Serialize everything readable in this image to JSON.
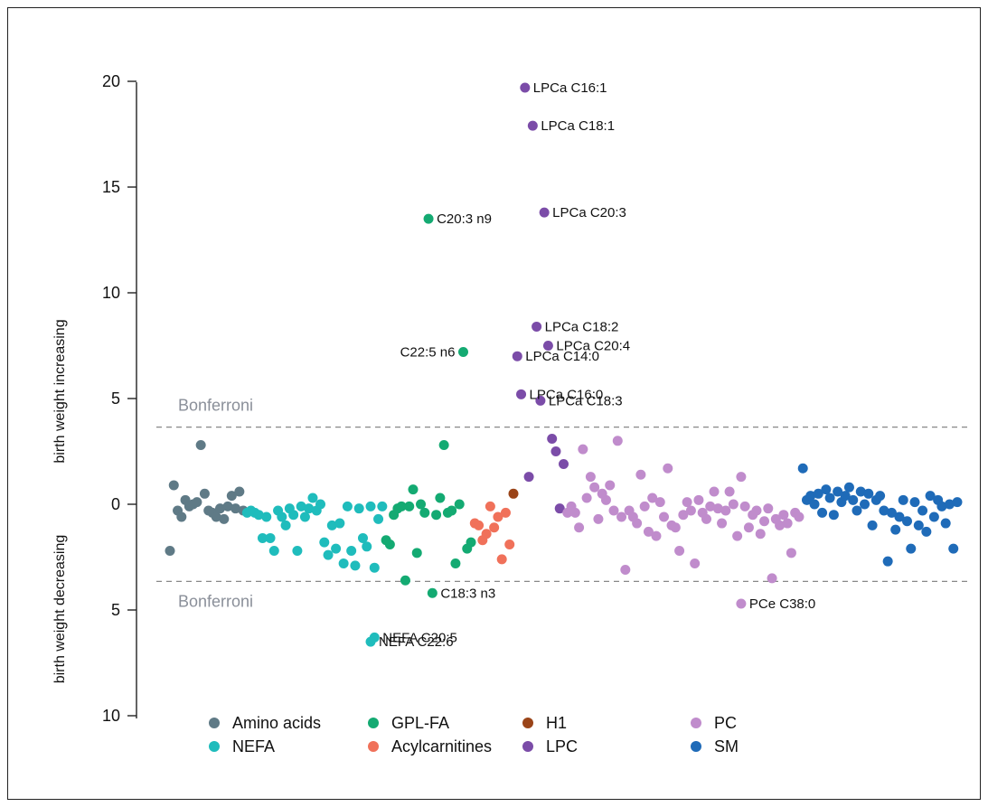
{
  "chart_data": {
    "type": "scatter",
    "yaxis": {
      "ticks_up": [
        "20",
        "15",
        "10",
        "5"
      ],
      "tick_zero": "0",
      "ticks_down": [
        "5",
        "10"
      ],
      "label_up": "birth weight increasing",
      "label_down": "birth weight decreasing",
      "range": [
        -10,
        20
      ]
    },
    "threshold": {
      "label": "Bonferroni",
      "value": 3.65
    },
    "colors": {
      "Amino acids": "#5f7a86",
      "NEFA": "#1fbcbc",
      "GPL-FA": "#14aa72",
      "Acylcarnitines": "#f0715a",
      "H1": "#9a4418",
      "LPC": "#7b4ca8",
      "PC": "#c08ccc",
      "SM": "#1f6bb8"
    },
    "legend": [
      {
        "name": "Amino acids"
      },
      {
        "name": "NEFA"
      },
      {
        "name": "GPL-FA"
      },
      {
        "name": "Acylcarnitines"
      },
      {
        "name": "H1"
      },
      {
        "name": "LPC"
      },
      {
        "name": "PC"
      },
      {
        "name": "SM"
      }
    ],
    "series": [
      {
        "name": "Amino acids",
        "points": [
          [
            1,
            -2.2
          ],
          [
            2,
            0.9
          ],
          [
            3,
            -0.3
          ],
          [
            4,
            -0.6
          ],
          [
            5,
            0.2
          ],
          [
            6,
            -0.1
          ],
          [
            7,
            0.0
          ],
          [
            8,
            0.1
          ],
          [
            9,
            2.8
          ],
          [
            10,
            0.5
          ],
          [
            11,
            -0.3
          ],
          [
            12,
            -0.4
          ],
          [
            13,
            -0.6
          ],
          [
            14,
            -0.2
          ],
          [
            15,
            -0.7
          ],
          [
            16,
            -0.1
          ],
          [
            17,
            0.4
          ],
          [
            18,
            -0.2
          ],
          [
            19,
            0.6
          ],
          [
            20,
            -0.3
          ]
        ]
      },
      {
        "name": "NEFA",
        "points": [
          [
            21,
            -0.4
          ],
          [
            22,
            -0.3
          ],
          [
            23,
            -0.4
          ],
          [
            24,
            -0.5
          ],
          [
            25,
            -1.6
          ],
          [
            26,
            -0.6
          ],
          [
            27,
            -1.6
          ],
          [
            28,
            -2.2
          ],
          [
            29,
            -0.3
          ],
          [
            30,
            -0.6
          ],
          [
            31,
            -1.0
          ],
          [
            32,
            -0.2
          ],
          [
            33,
            -0.5
          ],
          [
            34,
            -2.2
          ],
          [
            35,
            -0.1
          ],
          [
            36,
            -0.6
          ],
          [
            37,
            -0.2
          ],
          [
            38,
            0.3
          ],
          [
            39,
            -0.3
          ],
          [
            40,
            0.0
          ],
          [
            41,
            -1.8
          ],
          [
            42,
            -2.4
          ],
          [
            43,
            -1.0
          ],
          [
            44,
            -2.1
          ],
          [
            45,
            -0.9
          ],
          [
            46,
            -2.8
          ],
          [
            47,
            -0.1
          ],
          [
            48,
            -2.2
          ],
          [
            49,
            -2.9
          ],
          [
            50,
            -0.2
          ],
          [
            51,
            -1.6
          ],
          [
            52,
            -2.0
          ],
          [
            53,
            -0.1
          ],
          [
            54,
            -3.0
          ],
          [
            55,
            -0.7
          ],
          [
            56,
            -0.1
          ]
        ]
      },
      {
        "name": "GPL-FA",
        "points": [
          [
            57,
            -1.7
          ],
          [
            58,
            -1.9
          ],
          [
            59,
            -0.5
          ],
          [
            60,
            -0.2
          ],
          [
            61,
            -0.1
          ],
          [
            62,
            -3.6
          ],
          [
            63,
            -0.1
          ],
          [
            64,
            0.7
          ],
          [
            65,
            -2.3
          ],
          [
            66,
            0.0
          ],
          [
            67,
            -0.4
          ],
          [
            68,
            13.5
          ],
          [
            69,
            -4.2
          ],
          [
            70,
            -0.5
          ],
          [
            71,
            0.3
          ],
          [
            72,
            2.8
          ],
          [
            73,
            -0.4
          ],
          [
            74,
            -0.3
          ],
          [
            75,
            -2.8
          ],
          [
            76,
            0.0
          ],
          [
            77,
            7.2
          ],
          [
            78,
            -2.1
          ],
          [
            79,
            -1.8
          ]
        ]
      },
      {
        "name": "Acylcarnitines",
        "points": [
          [
            80,
            -0.9
          ],
          [
            81,
            -1.0
          ],
          [
            82,
            -1.7
          ],
          [
            83,
            -1.4
          ],
          [
            84,
            -0.1
          ],
          [
            85,
            -1.1
          ],
          [
            86,
            -0.6
          ],
          [
            87,
            -2.6
          ],
          [
            88,
            -0.4
          ],
          [
            89,
            -1.9
          ]
        ]
      },
      {
        "name": "H1",
        "points": [
          [
            90,
            0.5
          ]
        ]
      },
      {
        "name": "LPC",
        "points": [
          [
            91,
            7.0
          ],
          [
            92,
            5.2
          ],
          [
            93,
            19.7
          ],
          [
            94,
            1.3
          ],
          [
            95,
            17.9
          ],
          [
            96,
            8.4
          ],
          [
            97,
            4.9
          ],
          [
            98,
            13.8
          ],
          [
            99,
            7.5
          ],
          [
            100,
            3.1
          ],
          [
            101,
            2.5
          ],
          [
            102,
            -0.2
          ],
          [
            103,
            1.9
          ]
        ]
      },
      {
        "name": "PC",
        "points": [
          [
            104,
            -0.4
          ],
          [
            105,
            -0.1
          ],
          [
            106,
            -0.4
          ],
          [
            107,
            -1.1
          ],
          [
            108,
            2.6
          ],
          [
            109,
            0.3
          ],
          [
            110,
            1.3
          ],
          [
            111,
            0.8
          ],
          [
            112,
            -0.7
          ],
          [
            113,
            0.5
          ],
          [
            114,
            0.2
          ],
          [
            115,
            0.9
          ],
          [
            116,
            -0.3
          ],
          [
            117,
            3.0
          ],
          [
            118,
            -0.6
          ],
          [
            119,
            -3.1
          ],
          [
            120,
            -0.3
          ],
          [
            121,
            -0.6
          ],
          [
            122,
            -0.9
          ],
          [
            123,
            1.4
          ],
          [
            124,
            -0.1
          ],
          [
            125,
            -1.3
          ],
          [
            126,
            0.3
          ],
          [
            127,
            -1.5
          ],
          [
            128,
            0.1
          ],
          [
            129,
            -0.6
          ],
          [
            130,
            1.7
          ],
          [
            131,
            -1.0
          ],
          [
            132,
            -1.1
          ],
          [
            133,
            -2.2
          ],
          [
            134,
            -0.5
          ],
          [
            135,
            0.1
          ],
          [
            136,
            -0.3
          ],
          [
            137,
            -2.8
          ],
          [
            138,
            0.2
          ],
          [
            139,
            -0.4
          ],
          [
            140,
            -0.7
          ],
          [
            141,
            -0.1
          ],
          [
            142,
            0.6
          ],
          [
            143,
            -0.2
          ],
          [
            144,
            -0.9
          ],
          [
            145,
            -0.3
          ],
          [
            146,
            0.6
          ],
          [
            147,
            0.0
          ],
          [
            148,
            -1.5
          ],
          [
            149,
            1.3
          ],
          [
            150,
            -0.1
          ],
          [
            151,
            -1.1
          ],
          [
            152,
            -0.5
          ],
          [
            153,
            -0.3
          ],
          [
            154,
            -1.4
          ],
          [
            155,
            -0.8
          ],
          [
            156,
            -0.2
          ],
          [
            157,
            -3.5
          ],
          [
            158,
            -0.7
          ],
          [
            159,
            -1.0
          ],
          [
            160,
            -0.5
          ],
          [
            161,
            -0.9
          ],
          [
            162,
            -2.3
          ],
          [
            163,
            -0.4
          ],
          [
            164,
            -0.6
          ]
        ]
      },
      {
        "name": "SM",
        "points": [
          [
            165,
            1.7
          ],
          [
            166,
            0.2
          ],
          [
            167,
            0.4
          ],
          [
            168,
            0.0
          ],
          [
            169,
            0.5
          ],
          [
            170,
            -0.4
          ],
          [
            171,
            0.7
          ],
          [
            172,
            0.3
          ],
          [
            173,
            -0.5
          ],
          [
            174,
            0.6
          ],
          [
            175,
            0.1
          ],
          [
            176,
            0.4
          ],
          [
            177,
            0.8
          ],
          [
            178,
            0.2
          ],
          [
            179,
            -0.3
          ],
          [
            180,
            0.6
          ],
          [
            181,
            0.0
          ],
          [
            182,
            0.5
          ],
          [
            183,
            -1.0
          ],
          [
            184,
            0.2
          ],
          [
            185,
            0.4
          ],
          [
            186,
            -0.3
          ],
          [
            187,
            -2.7
          ],
          [
            188,
            -0.4
          ],
          [
            189,
            -1.2
          ],
          [
            190,
            -0.6
          ],
          [
            191,
            0.2
          ],
          [
            192,
            -0.8
          ],
          [
            193,
            -2.1
          ],
          [
            194,
            0.1
          ],
          [
            195,
            -1.0
          ],
          [
            196,
            -0.3
          ],
          [
            197,
            -1.3
          ],
          [
            198,
            0.4
          ],
          [
            199,
            -0.6
          ],
          [
            200,
            0.2
          ],
          [
            201,
            -0.1
          ],
          [
            202,
            -0.9
          ],
          [
            203,
            0.0
          ],
          [
            204,
            -2.1
          ],
          [
            205,
            0.1
          ]
        ]
      }
    ],
    "annotations": [
      {
        "text": "LPCa C16:1",
        "x": 93,
        "y": 19.7,
        "side": "right"
      },
      {
        "text": "LPCa C18:1",
        "x": 95,
        "y": 17.9,
        "side": "right"
      },
      {
        "text": "C20:3 n9",
        "x": 68,
        "y": 13.5,
        "side": "right"
      },
      {
        "text": "LPCa C20:3",
        "x": 98,
        "y": 13.8,
        "side": "right"
      },
      {
        "text": "LPCa C18:2",
        "x": 96,
        "y": 8.4,
        "side": "right"
      },
      {
        "text": "LPCa C20:4",
        "x": 99,
        "y": 7.5,
        "side": "right"
      },
      {
        "text": "C22:5 n6",
        "x": 77,
        "y": 7.2,
        "side": "left"
      },
      {
        "text": "LPCa C14:0",
        "x": 91,
        "y": 7.0,
        "side": "right"
      },
      {
        "text": "LPCa C16:0",
        "x": 92,
        "y": 5.2,
        "side": "right"
      },
      {
        "text": "LPCa C18:3",
        "x": 97,
        "y": 4.9,
        "side": "right"
      },
      {
        "text": "C18:3 n3",
        "x": 69,
        "y": -4.2,
        "side": "right"
      },
      {
        "text": "PCe C38:0",
        "x": 149,
        "y": -4.7,
        "side": "right"
      },
      {
        "text": "NEFA C20:5",
        "x": 54,
        "y": -6.3,
        "side": "right"
      },
      {
        "text": "NEFA C22:6",
        "x": 53,
        "y": -6.5,
        "side": "right"
      }
    ]
  },
  "extra_points": [
    {
      "series": "PC",
      "x": 149,
      "y": -4.7
    },
    {
      "series": "NEFA",
      "x": 54,
      "y": -6.3
    },
    {
      "series": "NEFA",
      "x": 53,
      "y": -6.5
    }
  ]
}
